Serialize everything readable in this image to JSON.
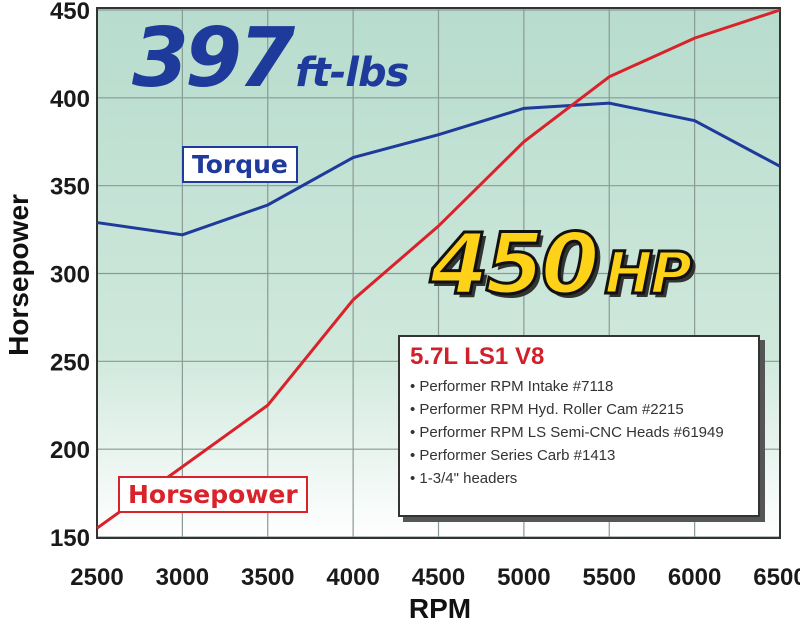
{
  "chart_data": {
    "type": "line",
    "xlabel": "RPM",
    "ylabel": "Horsepower",
    "x": [
      2500,
      3000,
      3500,
      4000,
      4500,
      5000,
      5500,
      6000,
      6500
    ],
    "xlim": [
      2500,
      6500
    ],
    "ylim": [
      150,
      450
    ],
    "xticks": [
      2500,
      3000,
      3500,
      4000,
      4500,
      5000,
      5500,
      6000,
      6500
    ],
    "yticks": [
      150,
      200,
      250,
      300,
      350,
      400,
      450
    ],
    "grid": true,
    "series": [
      {
        "name": "Torque",
        "color": "#1e3a9a",
        "values": [
          329,
          322,
          339,
          366,
          379,
          394,
          397,
          387,
          361
        ]
      },
      {
        "name": "Horsepower",
        "color": "#d9222a",
        "values": [
          155,
          190,
          225,
          285,
          327,
          375,
          412,
          434,
          450
        ]
      }
    ],
    "annotations": {
      "torque_peak": {
        "value": "397",
        "unit": "ft-lbs"
      },
      "hp_peak": {
        "value": "450",
        "unit": "HP"
      }
    },
    "info_box": {
      "title": "5.7L LS1 V8",
      "items": [
        "Performer RPM Intake #7118",
        "Performer RPM Hyd. Roller Cam #2215",
        "Performer RPM LS Semi-CNC Heads #61949",
        "Performer Series Carb #1413",
        "1-3/4\" headers"
      ]
    }
  }
}
